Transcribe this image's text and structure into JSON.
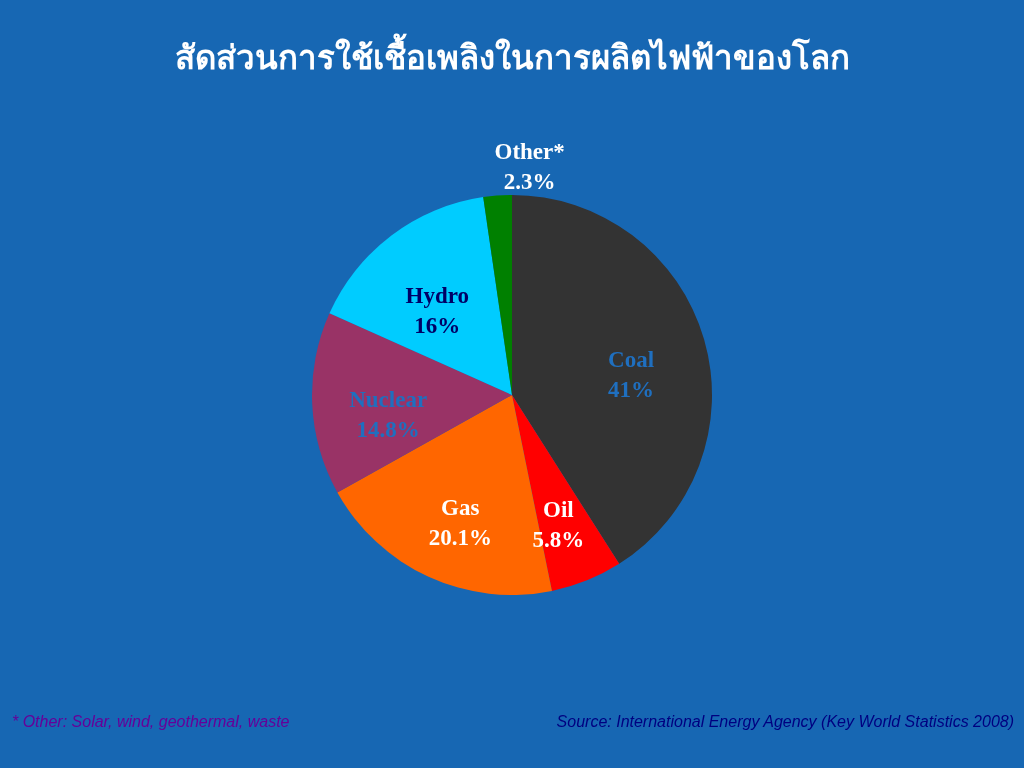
{
  "chart_data": {
    "type": "pie",
    "title": "สัดส่วนการใช้เชื้อเพลิงในการผลิตไฟฟ้าของโลก",
    "categories": [
      "Coal",
      "Oil",
      "Gas",
      "Nuclear",
      "Hydro",
      "Other*"
    ],
    "values": [
      41,
      5.8,
      20.1,
      14.8,
      16,
      2.3
    ],
    "colors": [
      "#333333",
      "#ff0000",
      "#ff6600",
      "#993366",
      "#00ccff",
      "#008000"
    ],
    "value_labels": [
      "41%",
      "5.8%",
      "20.1%",
      "14.8%",
      "16%",
      "2.3%"
    ],
    "annotations": [
      "* Other: Solar, wind, geothermal, waste",
      "Source: International Energy Agency (Key World Statistics 2008)"
    ]
  }
}
